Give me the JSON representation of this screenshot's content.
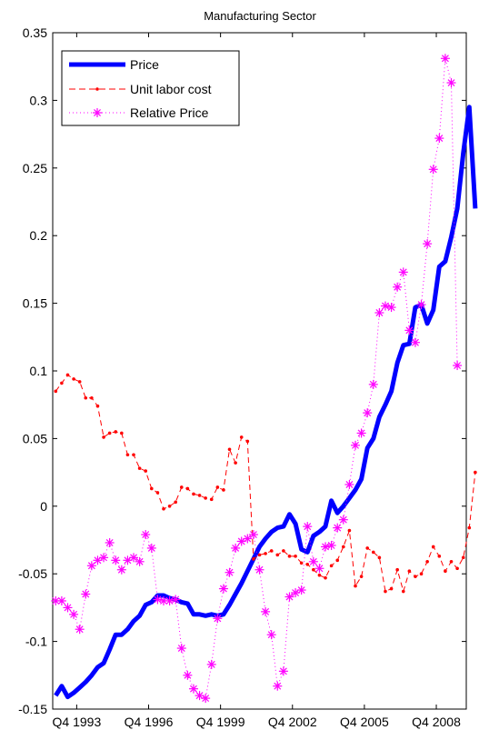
{
  "chart_data": {
    "type": "line",
    "title": "Manufacturing Sector",
    "xlabel": "",
    "ylabel": "",
    "ylim": [
      -0.15,
      0.35
    ],
    "yticks": [
      -0.15,
      -0.1,
      -0.05,
      0,
      0.05,
      0.1,
      0.15,
      0.2,
      0.25,
      0.3,
      0.35
    ],
    "ytick_labels": [
      "-0.15",
      "-0.1",
      "-0.05",
      "0",
      "0.05",
      "0.1",
      "0.15",
      "0.2",
      "0.25",
      "0.3",
      "0.35"
    ],
    "xlim": [
      1992.75,
      2010.0
    ],
    "xticks": [
      1993.75,
      1996.75,
      1999.75,
      2002.75,
      2005.75,
      2008.75
    ],
    "xtick_labels": [
      "Q4 1993",
      "Q4 1996",
      "Q4 1999",
      "Q4 2002",
      "Q4 2005",
      "Q4 2008"
    ],
    "x_start": 1992.875,
    "x_step": 0.25,
    "legend": {
      "position": "top-left"
    },
    "grid": false,
    "series": [
      {
        "name": "Price",
        "color": "#0000ff",
        "style": "solid-thick",
        "values": [
          -0.14,
          -0.133,
          -0.141,
          -0.138,
          -0.134,
          -0.13,
          -0.125,
          -0.119,
          -0.116,
          -0.106,
          -0.095,
          -0.095,
          -0.091,
          -0.085,
          -0.081,
          -0.073,
          -0.071,
          -0.066,
          -0.066,
          -0.068,
          -0.069,
          -0.071,
          -0.072,
          -0.08,
          -0.08,
          -0.081,
          -0.08,
          -0.081,
          -0.08,
          -0.073,
          -0.065,
          -0.057,
          -0.048,
          -0.039,
          -0.03,
          -0.024,
          -0.019,
          -0.016,
          -0.015,
          -0.006,
          -0.013,
          -0.032,
          -0.034,
          -0.022,
          -0.019,
          -0.015,
          0.004,
          -0.005,
          0.0,
          0.006,
          0.012,
          0.02,
          0.043,
          0.05,
          0.066,
          0.075,
          0.085,
          0.106,
          0.119,
          0.12,
          0.147,
          0.149,
          0.135,
          0.145,
          0.177,
          0.181,
          0.199,
          0.22,
          0.261,
          0.295,
          0.22
        ]
      },
      {
        "name": "Unit labor cost",
        "color": "#ff0000",
        "style": "dashed-dot",
        "values": [
          0.085,
          0.091,
          0.097,
          0.094,
          0.092,
          0.08,
          0.08,
          0.074,
          0.051,
          0.054,
          0.055,
          0.054,
          0.038,
          0.038,
          0.028,
          0.026,
          0.013,
          0.01,
          -0.002,
          0.0,
          0.003,
          0.014,
          0.013,
          0.009,
          0.008,
          0.006,
          0.005,
          0.014,
          0.012,
          0.042,
          0.032,
          0.051,
          0.048,
          -0.039,
          -0.036,
          -0.035,
          -0.033,
          -0.036,
          -0.033,
          -0.037,
          -0.037,
          -0.042,
          -0.043,
          -0.047,
          -0.051,
          -0.053,
          -0.044,
          -0.04,
          -0.03,
          -0.018,
          -0.059,
          -0.052,
          -0.031,
          -0.034,
          -0.038,
          -0.063,
          -0.061,
          -0.047,
          -0.063,
          -0.048,
          -0.052,
          -0.05,
          -0.041,
          -0.03,
          -0.037,
          -0.048,
          -0.041,
          -0.046,
          -0.038,
          -0.016,
          0.025
        ]
      },
      {
        "name": "Relative Price",
        "color": "#ff00ff",
        "style": "dotted-star",
        "values": [
          -0.07,
          -0.07,
          -0.075,
          -0.08,
          -0.091,
          -0.065,
          -0.044,
          -0.04,
          -0.038,
          -0.027,
          -0.04,
          -0.047,
          -0.04,
          -0.038,
          -0.041,
          -0.021,
          -0.031,
          -0.069,
          -0.07,
          -0.07,
          -0.069,
          -0.105,
          -0.125,
          -0.135,
          -0.14,
          -0.142,
          -0.117,
          -0.083,
          -0.061,
          -0.049,
          -0.031,
          -0.026,
          -0.024,
          -0.021,
          -0.047,
          -0.078,
          -0.095,
          -0.133,
          -0.122,
          -0.067,
          -0.064,
          -0.062,
          -0.015,
          -0.041,
          -0.046,
          -0.03,
          -0.029,
          -0.016,
          -0.01,
          0.016,
          0.045,
          0.054,
          0.069,
          0.09,
          0.143,
          0.148,
          0.147,
          0.162,
          0.173,
          0.13,
          0.121,
          0.149,
          0.194,
          0.249,
          0.272,
          0.331,
          0.313,
          0.104
        ]
      }
    ]
  }
}
